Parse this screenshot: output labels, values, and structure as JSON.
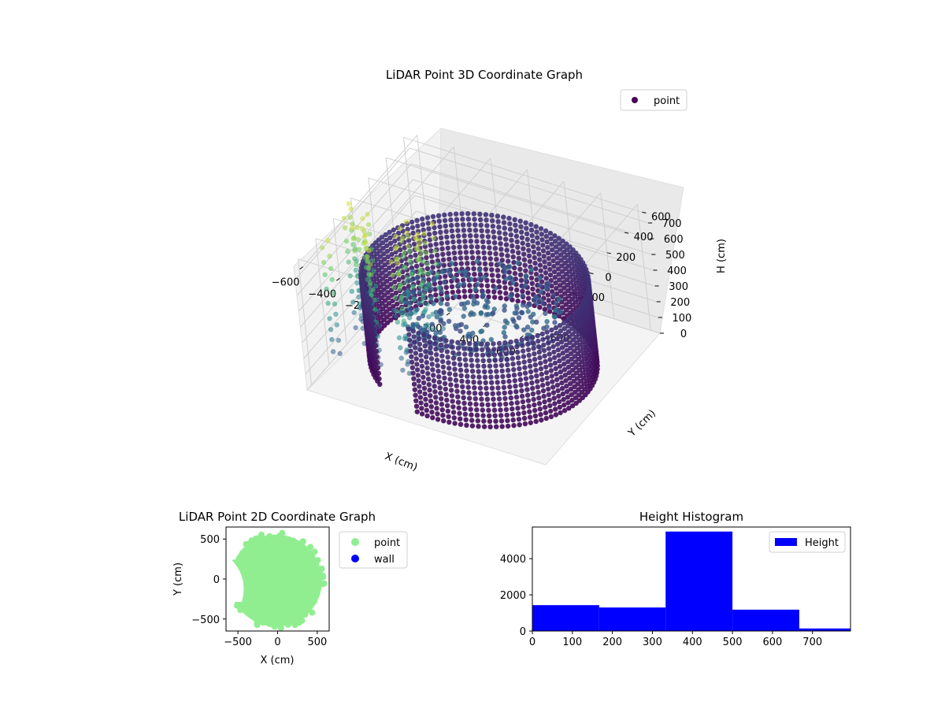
{
  "figure": {
    "background": "#ffffff"
  },
  "chart_data": [
    {
      "type": "scatter",
      "projection": "3d",
      "title": "LiDAR Point 3D Coordinate Graph",
      "xlabel": "X (cm)",
      "ylabel": "Y (cm)",
      "zlabel": "H (cm)",
      "xlim": [
        -650,
        650
      ],
      "ylim": [
        -650,
        650
      ],
      "zlim": [
        0,
        800
      ],
      "z_inverted": true,
      "xticks": [
        -600,
        -400,
        -200,
        0,
        200,
        400,
        600
      ],
      "yticks": [
        -600,
        -400,
        -200,
        0,
        200,
        400,
        600
      ],
      "zticks": [
        0,
        100,
        200,
        300,
        400,
        500,
        600,
        700
      ],
      "colormap": "viridis",
      "legend": {
        "position": "top-right",
        "entries": [
          {
            "label": "point",
            "color": "#440154"
          }
        ]
      },
      "grid": true,
      "series": [
        {
          "name": "point",
          "shape": "cylinder wall",
          "radius": 560,
          "h_min": 0,
          "h_max": 530,
          "arc_deg": [
            -100,
            230
          ],
          "color": "#45146b"
        },
        {
          "name": "point",
          "shape": "floor disc",
          "radius": 420,
          "h": 300,
          "color": "#3d6a8c"
        },
        {
          "name": "point",
          "shape": "scattered columns",
          "x_range": [
            -650,
            -200
          ],
          "y_range": [
            -650,
            -300
          ],
          "h_min": 50,
          "h_max": 800,
          "color_low": "#b8de29",
          "color_high": "#39568c"
        }
      ]
    },
    {
      "type": "scatter",
      "title": "LiDAR Point 2D Coordinate Graph",
      "xlabel": "X (cm)",
      "ylabel": "Y (cm)",
      "xlim": [
        -650,
        650
      ],
      "ylim": [
        -650,
        650
      ],
      "xticks": [
        -500,
        0,
        500
      ],
      "yticks": [
        -500,
        0,
        500
      ],
      "legend": {
        "position": "outside-right",
        "entries": [
          {
            "label": "point",
            "color": "#90ee90"
          },
          {
            "label": "wall",
            "color": "#0000ff"
          }
        ]
      },
      "series": [
        {
          "name": "point",
          "color": "#90ee90",
          "shape": "disc",
          "center": [
            -20,
            -20
          ],
          "radius": 580
        },
        {
          "name": "wall",
          "color": "#0000ff",
          "points": []
        }
      ]
    },
    {
      "type": "bar",
      "title": "Height Histogram",
      "xlabel": "",
      "ylabel": "",
      "xlim": [
        0,
        795
      ],
      "ylim": [
        0,
        5750
      ],
      "xticks": [
        0,
        100,
        200,
        300,
        400,
        500,
        600,
        700
      ],
      "yticks": [
        0,
        2000,
        4000
      ],
      "color": "#0000ff",
      "legend": {
        "position": "top-right",
        "entries": [
          {
            "label": "Height",
            "color": "#0000ff"
          }
        ]
      },
      "bins": [
        {
          "x0": 0,
          "x1": 167,
          "count": 1430
        },
        {
          "x0": 167,
          "x1": 333,
          "count": 1300
        },
        {
          "x0": 333,
          "x1": 500,
          "count": 5500
        },
        {
          "x0": 500,
          "x1": 667,
          "count": 1180
        },
        {
          "x0": 667,
          "x1": 834,
          "count": 140
        }
      ]
    }
  ]
}
